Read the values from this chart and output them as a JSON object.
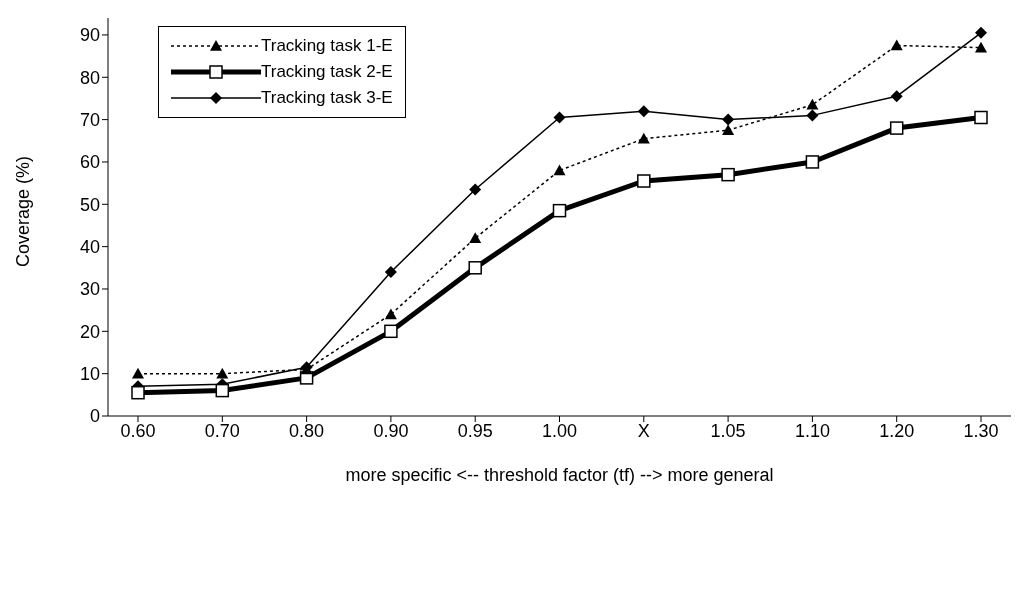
{
  "chart_data": {
    "type": "line",
    "xlabel": "more specific <-- threshold factor (tf) --> more general",
    "ylabel": "Coverage (%)",
    "categories": [
      "0.60",
      "0.70",
      "0.80",
      "0.90",
      "0.95",
      "1.00",
      "X",
      "1.05",
      "1.10",
      "1.20",
      "1.30"
    ],
    "series": [
      {
        "name": "Tracking task 1-E",
        "color": "#000000",
        "marker": "triangle",
        "line_style": "dotted",
        "values": [
          10,
          10,
          11,
          24,
          42,
          58,
          65.5,
          67.5,
          73.5,
          87.5,
          87
        ]
      },
      {
        "name": "Tracking task 2-E",
        "color": "#000000",
        "marker": "square",
        "line_style": "solid",
        "values": [
          5.5,
          6,
          9,
          20,
          35,
          48.5,
          55.5,
          57,
          60,
          68,
          70.5
        ]
      },
      {
        "name": "Tracking task 3-E",
        "color": "#000000",
        "marker": "diamond",
        "line_style": "solid",
        "values": [
          7,
          7.5,
          11.5,
          34,
          53.5,
          70.5,
          72,
          70,
          71,
          75.5,
          90.5
        ]
      }
    ],
    "ylim": [
      0,
      94
    ],
    "yticks": [
      0,
      10,
      20,
      30,
      40,
      50,
      60,
      70,
      80,
      90
    ],
    "legend": "top left"
  }
}
